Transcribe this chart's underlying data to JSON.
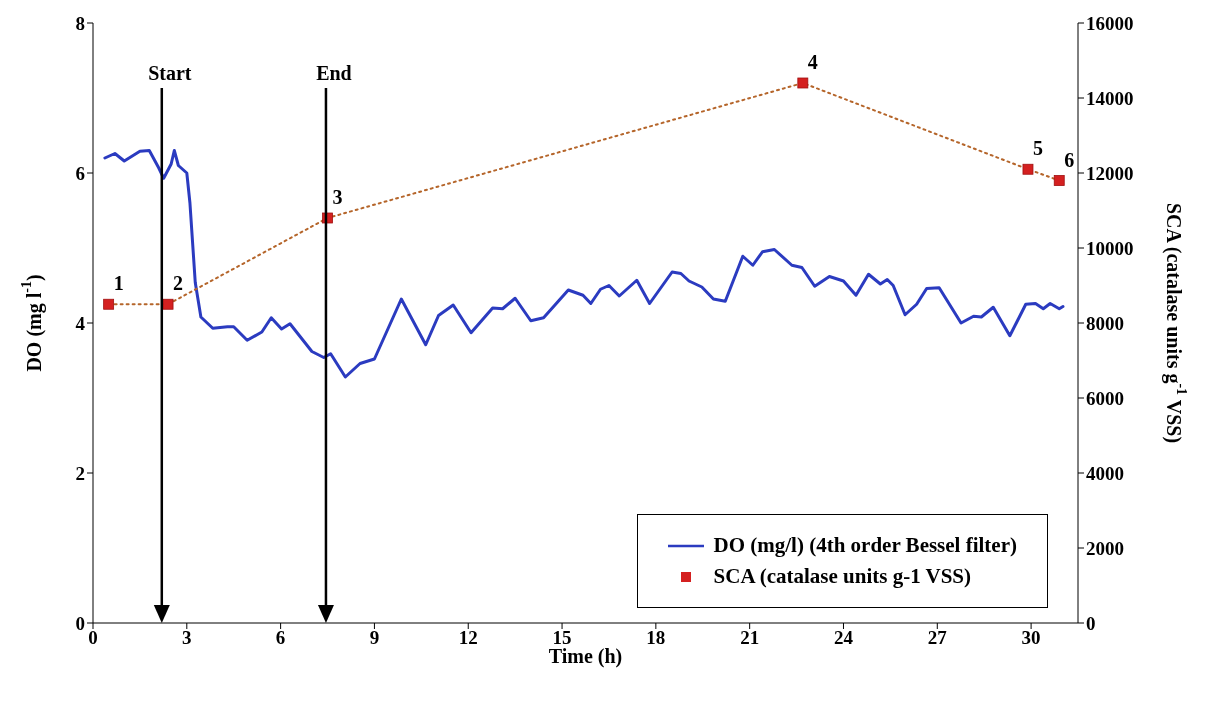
{
  "chart_data": {
    "type": "line",
    "xlabel": "Time (h)",
    "ylabel": "DO (mg l$^{-1}$)",
    "y2label": "SCA (catalase units g$^{-1}$ VSS)",
    "xlim": [
      0,
      31.5
    ],
    "xticks": [
      0,
      3,
      6,
      9,
      12,
      15,
      18,
      21,
      24,
      27,
      30
    ],
    "ylim": [
      0,
      8
    ],
    "yticks": [
      0,
      2,
      4,
      6,
      8
    ],
    "y2lim": [
      0,
      16000
    ],
    "y2ticks": [
      0,
      2000,
      4000,
      6000,
      8000,
      10000,
      12000,
      14000,
      16000
    ],
    "grid": false,
    "legend": "bottom right",
    "ref_lines": [
      {
        "axis": "x",
        "value": 2.2,
        "label": "Start",
        "color": "#000000"
      },
      {
        "axis": "x",
        "value": 7.45,
        "label": "End",
        "color": "#000000"
      }
    ],
    "annotations": [
      {
        "text": "1",
        "x": 0.5,
        "y": 4.25
      },
      {
        "text": "2",
        "x": 2.4,
        "y": 4.25
      },
      {
        "text": "3",
        "x": 7.5,
        "y": 5.4
      },
      {
        "text": "4",
        "x": 22.7,
        "y": 7.2
      },
      {
        "text": "5",
        "x": 29.9,
        "y": 6.05
      },
      {
        "text": "6",
        "x": 30.9,
        "y": 5.9
      }
    ],
    "series": [
      {
        "name": "DO (mg/l) (4th order Bessel filter)",
        "color": "#2b3bc0",
        "marker": "none",
        "line_style": "solid",
        "x": [
          0.38,
          0.7,
          1.0,
          1.5,
          1.8,
          2.1,
          2.26,
          2.5,
          2.6,
          2.73,
          3.0,
          3.1,
          3.27,
          3.45,
          3.83,
          4.3,
          4.5,
          4.93,
          5.4,
          5.7,
          6.03,
          6.3,
          7.0,
          7.38,
          7.6,
          8.07,
          8.54,
          9.0,
          9.86,
          10.64,
          11.05,
          11.52,
          12.09,
          12.78,
          13.1,
          13.5,
          14.0,
          14.41,
          15.2,
          15.67,
          15.92,
          16.23,
          16.5,
          16.83,
          17.39,
          17.8,
          18.52,
          18.8,
          19.06,
          19.47,
          19.84,
          20.22,
          20.78,
          21.1,
          21.41,
          21.79,
          22.35,
          22.67,
          23.08,
          23.55,
          24.0,
          24.4,
          24.8,
          25.18,
          25.4,
          25.59,
          25.97,
          26.34,
          26.66,
          27.06,
          27.76,
          28.16,
          28.41,
          28.79,
          29.32,
          29.83,
          30.14,
          30.39,
          30.61,
          30.9,
          31.02
        ],
        "values": [
          6.2,
          6.26,
          6.16,
          6.29,
          6.3,
          6.07,
          5.93,
          6.12,
          6.3,
          6.1,
          6.0,
          5.6,
          4.54,
          4.08,
          3.93,
          3.95,
          3.95,
          3.77,
          3.88,
          4.07,
          3.92,
          3.99,
          3.62,
          3.54,
          3.59,
          3.28,
          3.46,
          3.52,
          4.32,
          3.71,
          4.1,
          4.24,
          3.87,
          4.2,
          4.19,
          4.33,
          4.03,
          4.07,
          4.44,
          4.37,
          4.26,
          4.45,
          4.5,
          4.36,
          4.57,
          4.26,
          4.68,
          4.66,
          4.56,
          4.48,
          4.32,
          4.29,
          4.89,
          4.77,
          4.95,
          4.98,
          4.77,
          4.74,
          4.49,
          4.62,
          4.56,
          4.37,
          4.65,
          4.52,
          4.58,
          4.5,
          4.11,
          4.25,
          4.46,
          4.47,
          4.0,
          4.09,
          4.08,
          4.21,
          3.83,
          4.25,
          4.26,
          4.19,
          4.26,
          4.19,
          4.22
        ]
      },
      {
        "name": "SCA (catalase units g-1 VSS)",
        "color": "#d42020",
        "axis": "y2",
        "marker": "square",
        "line_style": "dotted",
        "x": [
          0.5,
          2.4,
          7.5,
          22.7,
          29.9,
          30.9
        ],
        "values": [
          8500,
          8500,
          10800,
          14400,
          12100,
          11800
        ]
      }
    ]
  }
}
